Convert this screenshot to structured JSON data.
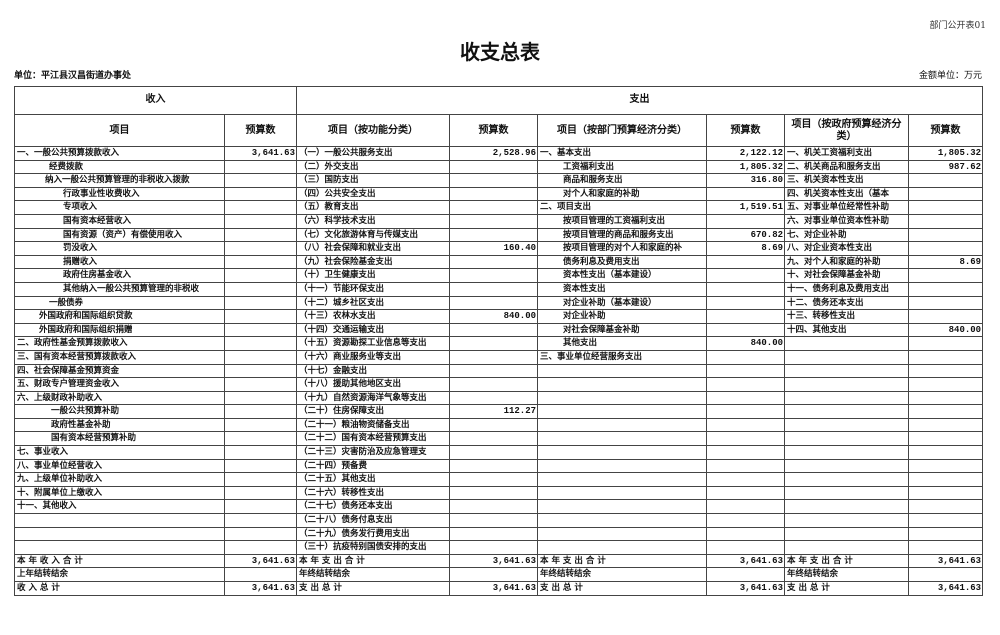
{
  "form_no": "部门公开表01",
  "title": "收支总表",
  "unit": "单位：平江县汉昌街道办事处",
  "money_unit": "金额单位：万元",
  "headers": {
    "income": "收入",
    "expense": "支出",
    "col1": "项目",
    "col2": "预算数",
    "col3": "项目（按功能分类）",
    "col4": "预算数",
    "col5": "项目（按部门预算经济分类）",
    "col6": "预算数",
    "col7": "项目（按政府预算经济分类）",
    "col8": "预算数"
  },
  "income": [
    {
      "label": "一、一般公共预算拨款收入",
      "level": 0,
      "value": "3,641.63"
    },
    {
      "label": "经费拨款",
      "level": 3,
      "value": ""
    },
    {
      "label": "纳入一般公共预算管理的非税收入拨款",
      "level": 2,
      "value": ""
    },
    {
      "label": "行政事业性收费收入",
      "level": 4,
      "value": ""
    },
    {
      "label": "专项收入",
      "level": 4,
      "value": ""
    },
    {
      "label": "国有资本经营收入",
      "level": 4,
      "value": ""
    },
    {
      "label": "国有资源（资产）有偿使用收入",
      "level": 4,
      "value": ""
    },
    {
      "label": "罚没收入",
      "level": 4,
      "value": ""
    },
    {
      "label": "捐赠收入",
      "level": 4,
      "value": ""
    },
    {
      "label": "政府住房基金收入",
      "level": 4,
      "value": ""
    },
    {
      "label": "其他纳入一般公共预算管理的非税收",
      "level": 4,
      "value": ""
    },
    {
      "label": "一般债券",
      "level": 3,
      "value": ""
    },
    {
      "label": "外国政府和国际组织贷款",
      "level": 1,
      "value": ""
    },
    {
      "label": "外国政府和国际组织捐赠",
      "level": 1,
      "value": ""
    },
    {
      "label": "二、政府性基金预算拨款收入",
      "level": 0,
      "value": ""
    },
    {
      "label": "三、国有资本经营预算拨款收入",
      "level": 0,
      "value": ""
    },
    {
      "label": "四、社会保障基金预算资金",
      "level": 0,
      "value": ""
    },
    {
      "label": "五、财政专户管理资金收入",
      "level": 0,
      "value": ""
    },
    {
      "label": "六、上级财政补助收入",
      "level": 0,
      "value": ""
    },
    {
      "label": "一般公共预算补助",
      "level": 5,
      "value": ""
    },
    {
      "label": "政府性基金补助",
      "level": 5,
      "value": ""
    },
    {
      "label": "国有资本经营预算补助",
      "level": 5,
      "value": ""
    },
    {
      "label": "七、事业收入",
      "level": 0,
      "value": ""
    },
    {
      "label": "八、事业单位经营收入",
      "level": 0,
      "value": ""
    },
    {
      "label": "九、上级单位补助收入",
      "level": 0,
      "value": ""
    },
    {
      "label": "十、附属单位上缴收入",
      "level": 0,
      "value": ""
    },
    {
      "label": "十一、其他收入",
      "level": 0,
      "value": ""
    },
    {
      "label": "",
      "level": 0,
      "value": ""
    },
    {
      "label": "",
      "level": 0,
      "value": ""
    },
    {
      "label": "",
      "level": 0,
      "value": ""
    }
  ],
  "expense_function": [
    {
      "label": "（一）一般公共服务支出",
      "value": "2,528.96"
    },
    {
      "label": "（二）外交支出",
      "value": ""
    },
    {
      "label": "（三）国防支出",
      "value": ""
    },
    {
      "label": "（四）公共安全支出",
      "value": ""
    },
    {
      "label": "（五）教育支出",
      "value": ""
    },
    {
      "label": "（六）科学技术支出",
      "value": ""
    },
    {
      "label": "（七）文化旅游体育与传媒支出",
      "value": ""
    },
    {
      "label": "（八）社会保障和就业支出",
      "value": "160.40"
    },
    {
      "label": "（九）社会保险基金支出",
      "value": ""
    },
    {
      "label": "（十）卫生健康支出",
      "value": ""
    },
    {
      "label": "（十一）节能环保支出",
      "value": ""
    },
    {
      "label": "（十二）城乡社区支出",
      "value": ""
    },
    {
      "label": "（十三）农林水支出",
      "value": "840.00"
    },
    {
      "label": "（十四）交通运输支出",
      "value": ""
    },
    {
      "label": "（十五）资源勘探工业信息等支出",
      "value": ""
    },
    {
      "label": "（十六）商业服务业等支出",
      "value": ""
    },
    {
      "label": "（十七）金融支出",
      "value": ""
    },
    {
      "label": "（十八）援助其他地区支出",
      "value": ""
    },
    {
      "label": "（十九）自然资源海洋气象等支出",
      "value": ""
    },
    {
      "label": "（二十）住房保障支出",
      "value": "112.27"
    },
    {
      "label": "（二十一）粮油物资储备支出",
      "value": ""
    },
    {
      "label": "（二十二）国有资本经营预算支出",
      "value": ""
    },
    {
      "label": "（二十三）灾害防治及应急管理支",
      "value": ""
    },
    {
      "label": "（二十四）预备费",
      "value": ""
    },
    {
      "label": "（二十五）其他支出",
      "value": ""
    },
    {
      "label": "（二十六）转移性支出",
      "value": ""
    },
    {
      "label": "（二十七）债务还本支出",
      "value": ""
    },
    {
      "label": "（二十八）债务付息支出",
      "value": ""
    },
    {
      "label": "（二十九）债务发行费用支出",
      "value": ""
    },
    {
      "label": "（三十）抗疫特别国债安排的支出",
      "value": ""
    }
  ],
  "expense_department": [
    {
      "label": "一、基本支出",
      "level": 0,
      "value": "2,122.12"
    },
    {
      "label": "工资福利支出",
      "level": 1,
      "value": "1,805.32"
    },
    {
      "label": "商品和服务支出",
      "level": 1,
      "value": "316.80"
    },
    {
      "label": "对个人和家庭的补助",
      "level": 1,
      "value": ""
    },
    {
      "label": "二、项目支出",
      "level": 0,
      "value": "1,519.51"
    },
    {
      "label": "按项目管理的工资福利支出",
      "level": 1,
      "value": ""
    },
    {
      "label": "按项目管理的商品和服务支出",
      "level": 1,
      "value": "670.82"
    },
    {
      "label": "按项目管理的对个人和家庭的补",
      "level": 1,
      "value": "8.69"
    },
    {
      "label": "债务利息及费用支出",
      "level": 1,
      "value": ""
    },
    {
      "label": "资本性支出（基本建设）",
      "level": 1,
      "value": ""
    },
    {
      "label": "资本性支出",
      "level": 1,
      "value": ""
    },
    {
      "label": "对企业补助（基本建设）",
      "level": 1,
      "value": ""
    },
    {
      "label": "对企业补助",
      "level": 1,
      "value": ""
    },
    {
      "label": "对社会保障基金补助",
      "level": 1,
      "value": ""
    },
    {
      "label": "其他支出",
      "level": 1,
      "value": "840.00"
    },
    {
      "label": "三、事业单位经营服务支出",
      "level": 0,
      "value": ""
    }
  ],
  "expense_government": [
    {
      "label": "一、机关工资福利支出",
      "value": "1,805.32"
    },
    {
      "label": "二、机关商品和服务支出",
      "value": "987.62"
    },
    {
      "label": "三、机关资本性支出",
      "value": ""
    },
    {
      "label": "四、机关资本性支出（基本",
      "value": ""
    },
    {
      "label": "五、对事业单位经常性补助",
      "value": ""
    },
    {
      "label": "六、对事业单位资本性补助",
      "value": ""
    },
    {
      "label": "七、对企业补助",
      "value": ""
    },
    {
      "label": "八、对企业资本性支出",
      "value": ""
    },
    {
      "label": "九、对个人和家庭的补助",
      "value": "8.69"
    },
    {
      "label": "十、对社会保障基金补助",
      "value": ""
    },
    {
      "label": "十一、债务利息及费用支出",
      "value": ""
    },
    {
      "label": "十二、债务还本支出",
      "value": ""
    },
    {
      "label": "十三、转移性支出",
      "value": ""
    },
    {
      "label": "十四、其他支出",
      "value": "840.00"
    }
  ],
  "totals": [
    {
      "income_label": "本 年 收 入 合 计",
      "income_value": "3,641.63",
      "fn_label": "本 年 支 出 合 计",
      "fn_value": "3,641.63",
      "dept_label": "本 年 支 出 合 计",
      "dept_value": "3,641.63",
      "gov_label": "本 年 支 出 合 计",
      "gov_value": "3,641.63"
    },
    {
      "income_label": "上年结转结余",
      "income_value": "",
      "fn_label": "年终结转结余",
      "fn_value": "",
      "dept_label": "年终结转结余",
      "dept_value": "",
      "gov_label": "年终结转结余",
      "gov_value": ""
    },
    {
      "income_label": "收 入 总 计",
      "income_value": "3,641.63",
      "fn_label": "支 出 总 计",
      "fn_value": "3,641.63",
      "dept_label": "支 出 总 计",
      "dept_value": "3,641.63",
      "gov_label": "支 出 总 计",
      "gov_value": "3,641.63"
    }
  ]
}
